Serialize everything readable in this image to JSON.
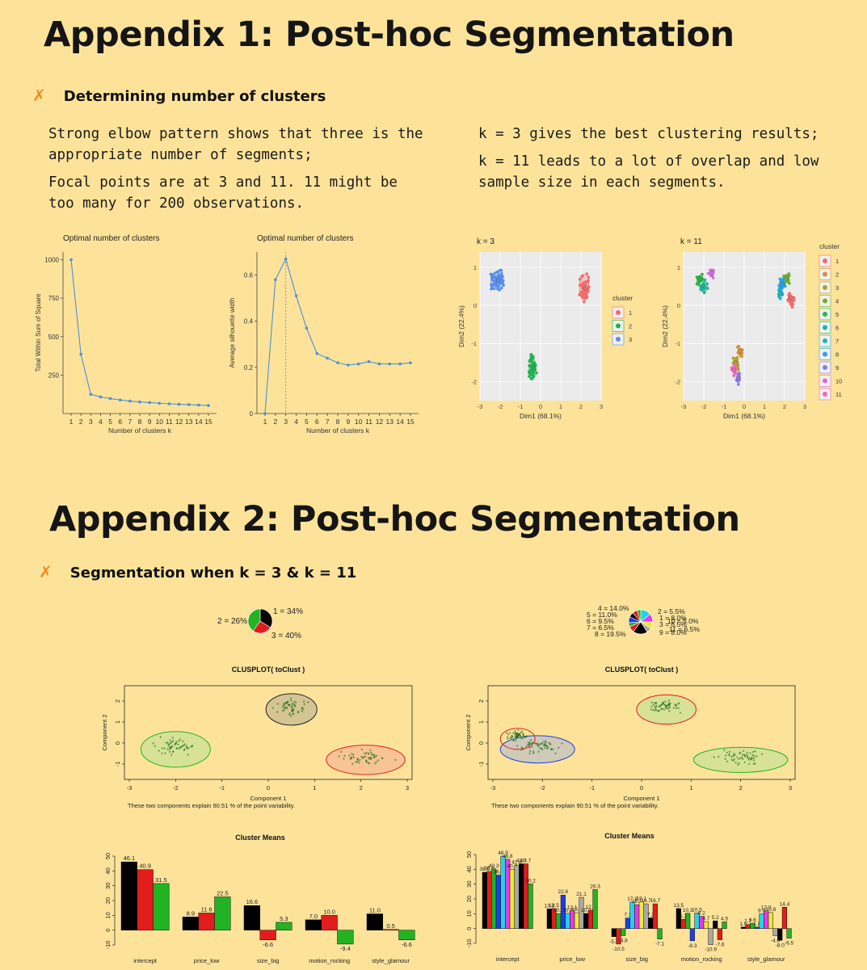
{
  "appendix1": {
    "title": "Appendix 1: Post-hoc Segmentation",
    "bullet": "Determining number of clusters",
    "left_text": [
      "Strong elbow pattern shows that three is the appropriate number of segments;",
      "Focal points are at 3 and 11. 11 might be too many for 200 observations."
    ],
    "right_text": [
      "k = 3 gives the best clustering results;",
      "k = 11 leads to a lot of overlap and low sample size in each segments."
    ]
  },
  "appendix2": {
    "title": "Appendix 2: Post-hoc Segmentation",
    "bullet": "Segmentation when k = 3 & k = 11"
  },
  "chart_data": [
    {
      "type": "line",
      "title": "Optimal number of clusters",
      "xlabel": "Number of clusters k",
      "ylabel": "Total Within Sum of Square",
      "x": [
        1,
        2,
        3,
        4,
        5,
        6,
        7,
        8,
        9,
        10,
        11,
        12,
        13,
        14,
        15
      ],
      "y": [
        1000,
        385,
        125,
        108,
        97,
        88,
        81,
        75,
        71,
        67,
        63,
        60,
        58,
        55,
        52
      ],
      "yticks": [
        250,
        500,
        750,
        1000
      ],
      "ylim": [
        0,
        1050
      ]
    },
    {
      "type": "line",
      "title": "Optimal number of clusters",
      "xlabel": "Number of clusters k",
      "ylabel": "Average silhouette width",
      "x": [
        1,
        2,
        3,
        4,
        5,
        6,
        7,
        8,
        9,
        10,
        11,
        12,
        13,
        14,
        15
      ],
      "y": [
        0.0,
        0.58,
        0.67,
        0.51,
        0.37,
        0.26,
        0.24,
        0.22,
        0.21,
        0.215,
        0.225,
        0.215,
        0.215,
        0.215,
        0.22
      ],
      "yticks": [
        0.0,
        0.2,
        0.4,
        0.6
      ],
      "ylim": [
        0,
        0.7
      ],
      "vline": 3
    },
    {
      "type": "scatter",
      "title": "k = 3",
      "xlabel": "Dim1 (68.1%)",
      "ylabel": "Dim2 (22.4%)",
      "xlim": [
        -3,
        3
      ],
      "ylim": [
        -2.5,
        1.4
      ],
      "legend_title": "cluster",
      "legend": [
        "1",
        "2",
        "3"
      ],
      "clusters": [
        {
          "name": "1",
          "color": "#f26b6b",
          "center": [
            2.2,
            0.45
          ],
          "spread": [
            0.35,
            0.45
          ],
          "n": 60
        },
        {
          "name": "2",
          "color": "#1fb450",
          "center": [
            -0.4,
            -1.6
          ],
          "spread": [
            0.25,
            0.45
          ],
          "n": 60
        },
        {
          "name": "3",
          "color": "#5a8ee8",
          "center": [
            -2.1,
            0.65
          ],
          "spread": [
            0.45,
            0.35
          ],
          "n": 70
        }
      ]
    },
    {
      "type": "scatter",
      "title": "k = 11",
      "xlabel": "Dim1 (68.1%)",
      "ylabel": "Dim2 (22.4%)",
      "xlim": [
        -3,
        3
      ],
      "ylim": [
        -2.5,
        1.4
      ],
      "legend_title": "cluster",
      "legend": [
        "1",
        "2",
        "3",
        "4",
        "5",
        "6",
        "7",
        "8",
        "9",
        "10",
        "11"
      ]
    },
    {
      "type": "pie",
      "labels": [
        "1 = 34%",
        "2 = 26%",
        "3 = 40%"
      ],
      "values": [
        34,
        26,
        40
      ],
      "colors": [
        "#000000",
        "#e11d1d",
        "#22b322"
      ]
    },
    {
      "type": "pie",
      "labels": [
        "4 = 14.0%",
        "5 = 11.0%",
        "6 = 9.5%",
        "7 = 6.5%",
        "8 = 19.5%",
        "9 = 8.0%",
        "2 = 5.5%",
        "1 = 8.0%",
        "3 = 6.5%",
        "11 = 6.5%",
        "10 = 5.0%"
      ],
      "values": [
        14,
        11,
        9.5,
        6.5,
        19.5,
        8,
        5.5,
        8,
        6.5,
        6.5,
        5
      ]
    },
    {
      "type": "scatter",
      "title": "CLUSPLOT( toClust )",
      "xlabel": "Component 1",
      "ylabel": "Component 2",
      "caption": "These two components explain 90.51 % of the point variability.",
      "xlim": [
        -3,
        3
      ],
      "ylim": [
        -1.5,
        2.5
      ]
    },
    {
      "type": "scatter",
      "title": "CLUSPLOT( toClust )",
      "xlabel": "Component 1",
      "ylabel": "Component 2",
      "caption": "These two components explain 90.51 % of the point variability.",
      "xlim": [
        -3,
        3
      ],
      "ylim": [
        -1.5,
        2.5
      ]
    },
    {
      "type": "bar",
      "title": "Cluster Means",
      "categories": [
        "intercept",
        "price_low",
        "size_big",
        "motion_rocking",
        "style_glamour"
      ],
      "series": [
        {
          "name": "1",
          "color": "#000000",
          "values": [
            46.1,
            8.9,
            16.6,
            7.0,
            11.0
          ]
        },
        {
          "name": "2",
          "color": "#e11d1d",
          "values": [
            40.9,
            11.6,
            -6.6,
            10.0,
            0.5
          ]
        },
        {
          "name": "3",
          "color": "#22b322",
          "values": [
            31.5,
            22.5,
            5.3,
            -9.4,
            -6.6
          ]
        }
      ],
      "ylim": [
        -10,
        50
      ],
      "yticks": [
        -10,
        0,
        10,
        20,
        30,
        40,
        50
      ]
    },
    {
      "type": "bar",
      "title": "Cluster Means",
      "categories": [
        "intercept",
        "price_low",
        "size_big",
        "motion_rocking",
        "style_glamour"
      ],
      "series_colors": [
        "#000000",
        "#e11d1d",
        "#22b322",
        "#1f3ee8",
        "#22d3e8",
        "#e83ae8",
        "#f0e83a",
        "#a8a8a8",
        "#000000",
        "#e11d1d",
        "#22b322"
      ],
      "values": [
        [
          38.0,
          38.6,
          40.3,
          36.1,
          48.9,
          46.8,
          40.0,
          42.6,
          43.7,
          43.7,
          30.2
        ],
        [
          13.3,
          13.5,
          10.1,
          22.6,
          10.3,
          12.1,
          10.7,
          21.1,
          10.2,
          12.4,
          26.3
        ],
        [
          -5.5,
          -10.5,
          -4.8,
          7.1,
          17.9,
          16.1,
          18.1,
          16.7,
          7.2,
          16.7,
          -7.1
        ],
        [
          13.5,
          6.2,
          10.3,
          -8.3,
          10.5,
          8.2,
          4.7,
          -10.9,
          5.2,
          -7.6,
          4.5
        ],
        [
          1.0,
          2.7,
          3.6,
          1.0,
          9.9,
          12.0,
          10.8,
          -4.8,
          -8.0,
          14.4,
          -6.5
        ]
      ],
      "ylim": [
        -10,
        50
      ],
      "yticks": [
        -10,
        0,
        10,
        20,
        30,
        40,
        50
      ]
    }
  ]
}
